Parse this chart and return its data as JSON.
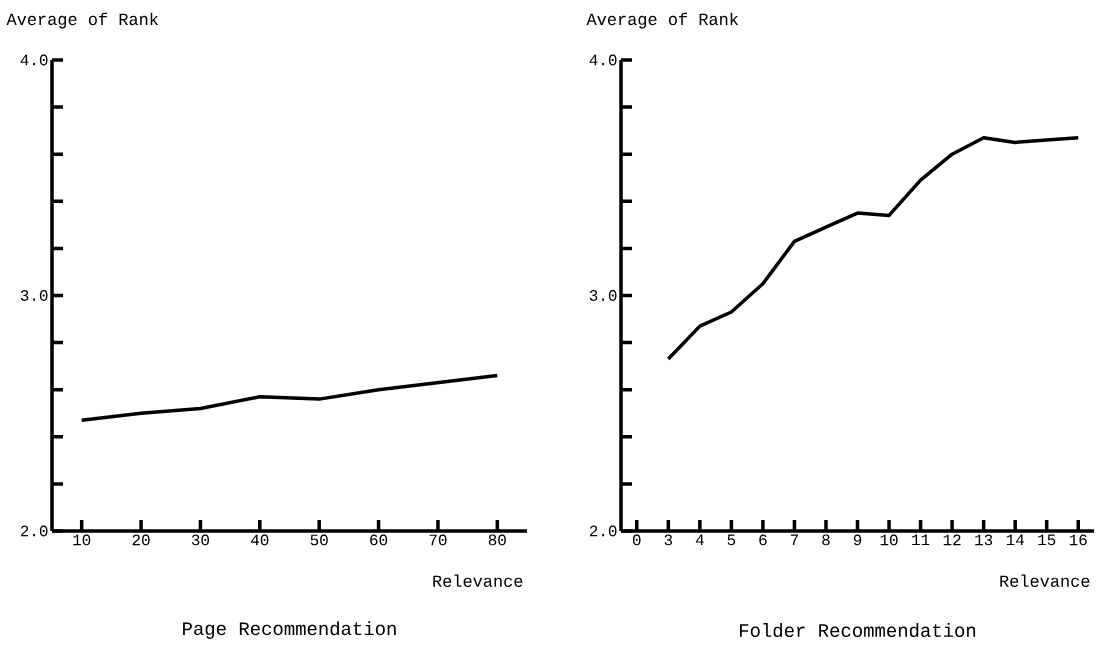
{
  "chart_data": [
    {
      "type": "line",
      "title": "Page Recommendation",
      "xlabel": "Relevance",
      "ylabel": "Average of Rank",
      "color": "#000000",
      "categories": [
        "10",
        "20",
        "30",
        "40",
        "50",
        "60",
        "70",
        "80"
      ],
      "values": [
        2.47,
        2.5,
        2.52,
        2.57,
        2.56,
        2.6,
        2.63,
        2.66
      ],
      "ylim": [
        2,
        4
      ],
      "yticks": [
        {
          "value": 2,
          "label": "2.0"
        },
        {
          "value": 2.2,
          "label": null
        },
        {
          "value": 2.4,
          "label": null
        },
        {
          "value": 2.6,
          "label": null
        },
        {
          "value": 2.8,
          "label": null
        },
        {
          "value": 3,
          "label": "3.0"
        },
        {
          "value": 3.2,
          "label": null
        },
        {
          "value": 3.4,
          "label": null
        },
        {
          "value": 3.6,
          "label": null
        },
        {
          "value": 3.8,
          "label": null
        },
        {
          "value": 4,
          "label": "4.0"
        }
      ]
    },
    {
      "type": "line",
      "title": "Folder Recommendation",
      "xlabel": "Relevance",
      "ylabel": "Average of Rank",
      "color": "#000000",
      "categories": [
        "0",
        "3",
        "4",
        "5",
        "6",
        "7",
        "8",
        "9",
        "10",
        "11",
        "12",
        "13",
        "14",
        "15",
        "16"
      ],
      "values": [
        null,
        2.73,
        2.87,
        2.93,
        3.05,
        3.23,
        3.29,
        3.35,
        3.34,
        3.49,
        3.6,
        3.67,
        3.65,
        3.66,
        3.67
      ],
      "ylim": [
        2,
        4
      ],
      "yticks": [
        {
          "value": 2,
          "label": "2.0"
        },
        {
          "value": 2.2,
          "label": null
        },
        {
          "value": 2.4,
          "label": null
        },
        {
          "value": 2.6,
          "label": null
        },
        {
          "value": 2.8,
          "label": null
        },
        {
          "value": 3,
          "label": "3.0"
        },
        {
          "value": 3.2,
          "label": null
        },
        {
          "value": 3.4,
          "label": null
        },
        {
          "value": 3.6,
          "label": null
        },
        {
          "value": 3.8,
          "label": null
        },
        {
          "value": 4,
          "label": "4.0"
        }
      ]
    }
  ]
}
